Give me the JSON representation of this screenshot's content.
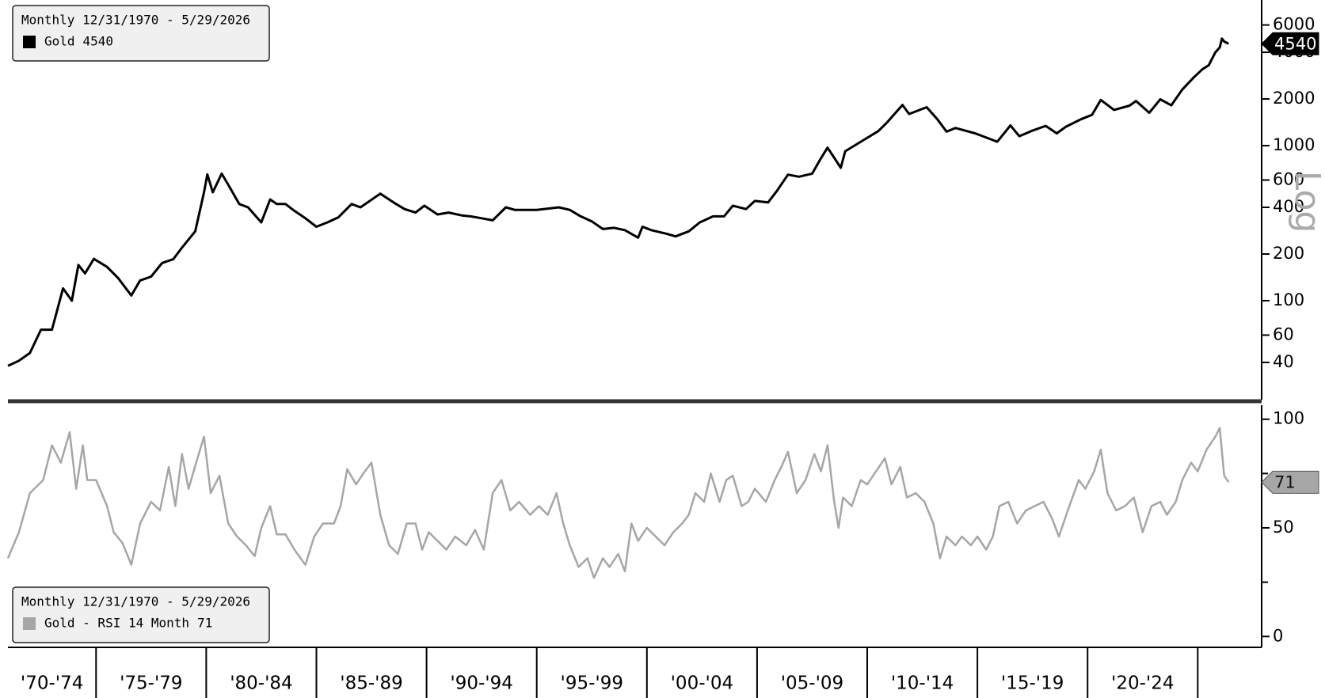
{
  "chart_data": [
    {
      "type": "line",
      "legend_title": "Monthly 12/31/1970 - 5/29/2026",
      "log": true,
      "scale_label": "Log",
      "xlim": [
        1971,
        2027.9
      ],
      "ylim": [
        23,
        8200
      ],
      "yticks": [
        40,
        60,
        100,
        200,
        400,
        600,
        1000,
        2000,
        4000,
        6000
      ],
      "x": [
        1971.0,
        1971.5,
        1972.0,
        1972.5,
        1973.0,
        1973.5,
        1973.9,
        1974.2,
        1974.5,
        1974.9,
        1975.5,
        1976.0,
        1976.6,
        1977.0,
        1977.5,
        1978.0,
        1978.5,
        1978.9,
        1979.5,
        1979.9,
        1980.05,
        1980.3,
        1980.7,
        1981.0,
        1981.5,
        1981.9,
        1982.5,
        1982.9,
        1983.2,
        1983.6,
        1984.0,
        1984.5,
        1985.0,
        1985.5,
        1986.0,
        1986.6,
        1987.0,
        1987.9,
        1988.5,
        1989.0,
        1989.5,
        1989.9,
        1990.5,
        1991.0,
        1991.6,
        1992.0,
        1992.5,
        1993.0,
        1993.6,
        1994.0,
        1995.0,
        1996.0,
        1996.5,
        1997.0,
        1997.5,
        1998.0,
        1998.5,
        1999.0,
        1999.6,
        1999.8,
        2000.2,
        2000.9,
        2001.3,
        2001.9,
        2002.4,
        2003.0,
        2003.5,
        2003.9,
        2004.5,
        2004.9,
        2005.5,
        2005.9,
        2006.4,
        2006.9,
        2007.5,
        2007.9,
        2008.2,
        2008.8,
        2009.0,
        2009.9,
        2010.5,
        2010.9,
        2011.6,
        2011.9,
        2012.7,
        2013.2,
        2013.6,
        2014.0,
        2014.9,
        2015.9,
        2016.5,
        2016.9,
        2017.5,
        2018.1,
        2018.6,
        2019.0,
        2019.7,
        2020.2,
        2020.6,
        2021.2,
        2021.9,
        2022.2,
        2022.8,
        2023.3,
        2023.8,
        2024.3,
        2024.8,
        2025.2,
        2025.5,
        2025.8,
        2026.0,
        2026.1,
        2026.2,
        2026.4
      ],
      "series": [
        {
          "name": "Gold",
          "color": "#000000",
          "values": [
            38,
            41,
            46,
            65,
            65,
            120,
            100,
            170,
            150,
            186,
            165,
            140,
            108,
            135,
            143,
            175,
            185,
            220,
            280,
            500,
            653,
            500,
            660,
            560,
            420,
            400,
            320,
            450,
            420,
            420,
            380,
            340,
            300,
            320,
            345,
            420,
            400,
            490,
            430,
            390,
            370,
            410,
            360,
            370,
            355,
            350,
            340,
            330,
            400,
            385,
            385,
            400,
            385,
            350,
            325,
            290,
            295,
            285,
            255,
            300,
            285,
            270,
            260,
            280,
            320,
            350,
            350,
            410,
            390,
            440,
            430,
            510,
            650,
            630,
            660,
            830,
            970,
            720,
            920,
            1100,
            1240,
            1410,
            1830,
            1600,
            1770,
            1470,
            1230,
            1300,
            1200,
            1060,
            1350,
            1150,
            1250,
            1340,
            1200,
            1320,
            1480,
            1580,
            1970,
            1700,
            1810,
            1940,
            1630,
            1990,
            1820,
            2300,
            2740,
            3100,
            3300,
            4000,
            4300,
            4900,
            4700,
            4540
          ]
        }
      ]
    },
    {
      "type": "line",
      "legend_title": "Monthly 12/31/1970 - 5/29/2026",
      "xlim": [
        1971,
        2027.9
      ],
      "xticks": [
        1975,
        1980,
        1985,
        1990,
        1995,
        2000,
        2005,
        2010,
        2015,
        2020,
        2025
      ],
      "x_band_labels": [
        "'70-'74",
        "'75-'79",
        "'80-'84",
        "'85-'89",
        "'90-'94",
        "'95-'99",
        "'00-'04",
        "'05-'09",
        "'10-'14",
        "'15-'19",
        "'20-'24"
      ],
      "ylim": [
        -5,
        105
      ],
      "yticks": [
        0,
        50,
        100
      ],
      "minor_yticks": [
        25,
        75
      ],
      "x": [
        1971.0,
        1971.5,
        1972.0,
        1972.6,
        1973.0,
        1973.4,
        1973.8,
        1974.1,
        1974.4,
        1974.6,
        1975.0,
        1975.5,
        1975.8,
        1976.2,
        1976.6,
        1977.0,
        1977.5,
        1977.9,
        1978.3,
        1978.6,
        1978.9,
        1979.2,
        1979.6,
        1979.9,
        1980.2,
        1980.6,
        1981.0,
        1981.4,
        1981.8,
        1982.2,
        1982.5,
        1982.9,
        1983.2,
        1983.6,
        1984.0,
        1984.5,
        1984.9,
        1985.3,
        1985.8,
        1986.1,
        1986.4,
        1986.8,
        1987.2,
        1987.5,
        1987.9,
        1988.3,
        1988.7,
        1989.1,
        1989.5,
        1989.8,
        1990.1,
        1990.5,
        1990.9,
        1991.3,
        1991.8,
        1992.2,
        1992.6,
        1993.0,
        1993.4,
        1993.8,
        1994.2,
        1994.7,
        1995.1,
        1995.5,
        1995.9,
        1996.2,
        1996.5,
        1996.9,
        1997.3,
        1997.6,
        1998.0,
        1998.3,
        1998.7,
        1999.0,
        1999.3,
        1999.6,
        2000.0,
        2000.4,
        2000.8,
        2001.2,
        2001.6,
        2001.9,
        2002.2,
        2002.6,
        2002.9,
        2003.3,
        2003.6,
        2003.9,
        2004.3,
        2004.6,
        2004.9,
        2005.4,
        2005.8,
        2006.1,
        2006.4,
        2006.8,
        2007.2,
        2007.6,
        2007.9,
        2008.2,
        2008.5,
        2008.7,
        2008.9,
        2009.3,
        2009.7,
        2010.0,
        2010.4,
        2010.8,
        2011.1,
        2011.5,
        2011.8,
        2012.2,
        2012.6,
        2013.0,
        2013.3,
        2013.6,
        2014.0,
        2014.3,
        2014.7,
        2015.0,
        2015.4,
        2015.7,
        2016.0,
        2016.4,
        2016.8,
        2017.2,
        2017.6,
        2018.0,
        2018.4,
        2018.7,
        2019.1,
        2019.6,
        2019.9,
        2020.3,
        2020.6,
        2020.9,
        2021.3,
        2021.7,
        2022.1,
        2022.5,
        2022.9,
        2023.3,
        2023.6,
        2024.0,
        2024.3,
        2024.7,
        2025.0,
        2025.4,
        2025.8,
        2026.0,
        2026.2,
        2026.4
      ],
      "series": [
        {
          "name": "Gold - RSI 14 Month",
          "color": "#a6a6a6",
          "values": [
            36,
            48,
            66,
            72,
            88,
            80,
            94,
            68,
            88,
            72,
            72,
            60,
            48,
            43,
            33,
            52,
            62,
            58,
            78,
            60,
            84,
            68,
            82,
            92,
            66,
            74,
            52,
            46,
            42,
            37,
            50,
            60,
            47,
            47,
            40,
            33,
            46,
            52,
            52,
            60,
            77,
            70,
            76,
            80,
            56,
            42,
            38,
            52,
            52,
            40,
            48,
            44,
            40,
            46,
            42,
            49,
            40,
            66,
            72,
            58,
            62,
            56,
            60,
            56,
            66,
            52,
            42,
            32,
            36,
            27,
            36,
            32,
            38,
            30,
            52,
            44,
            50,
            46,
            42,
            48,
            52,
            56,
            66,
            62,
            75,
            62,
            72,
            74,
            60,
            62,
            68,
            62,
            72,
            78,
            85,
            66,
            72,
            84,
            76,
            88,
            62,
            50,
            64,
            60,
            72,
            70,
            76,
            82,
            70,
            78,
            64,
            66,
            62,
            52,
            36,
            46,
            42,
            46,
            42,
            46,
            40,
            46,
            60,
            62,
            52,
            58,
            60,
            62,
            54,
            46,
            58,
            72,
            68,
            76,
            86,
            66,
            58,
            60,
            64,
            48,
            60,
            62,
            56,
            62,
            72,
            80,
            76,
            86,
            92,
            96,
            74,
            71
          ]
        }
      ]
    }
  ]
}
